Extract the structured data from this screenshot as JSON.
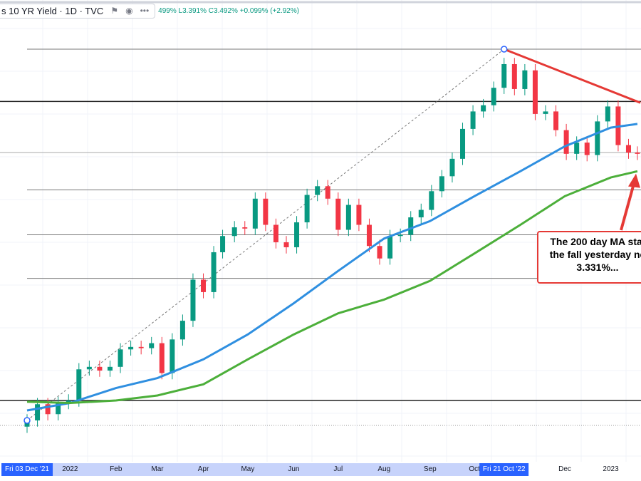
{
  "header": {
    "symbol": "s 10 YR Yield · 1D · TVC",
    "ohlc": "499% L3.391% C3.492% +0.099% (+2.92%)",
    "icons": [
      "flag-icon",
      "eye-icon",
      "more-icon"
    ]
  },
  "annotation": {
    "lines": [
      "The 200 day MA stal",
      "the fall yesterday ne",
      "3.331%..."
    ]
  },
  "x_axis": {
    "labels": [
      {
        "text": "2022",
        "date": "2022-01-01"
      },
      {
        "text": "Feb",
        "date": "2022-02-01"
      },
      {
        "text": "Mar",
        "date": "2022-03-01"
      },
      {
        "text": "Apr",
        "date": "2022-04-01"
      },
      {
        "text": "May",
        "date": "2022-05-01"
      },
      {
        "text": "Jun",
        "date": "2022-06-01"
      },
      {
        "text": "Jul",
        "date": "2022-07-01"
      },
      {
        "text": "Aug",
        "date": "2022-08-01"
      },
      {
        "text": "Sep",
        "date": "2022-09-01"
      },
      {
        "text": "Oct",
        "date": "2022-10-01"
      },
      {
        "text": "Dec",
        "date": "2022-12-01"
      },
      {
        "text": "2023",
        "date": "2023-01-01"
      }
    ],
    "highlighted": [
      {
        "text": "Fri 03 Dec '21",
        "date": "2021-12-03"
      },
      {
        "text": "Fri 21 Oct '22",
        "date": "2022-10-21"
      }
    ]
  },
  "chart_data": {
    "type": "candlestick",
    "title": "10 YR Yield",
    "interval": "1D",
    "unit": "%",
    "colors": {
      "up": "#089981",
      "down": "#f23645",
      "ma100": "#2f8fe0",
      "ma200": "#4caf3a",
      "trendline": "#e53935"
    },
    "weekly_closes": {
      "dates": [
        "2021-12-03",
        "2021-12-10",
        "2021-12-17",
        "2021-12-24",
        "2021-12-31",
        "2022-01-07",
        "2022-01-14",
        "2022-01-21",
        "2022-01-28",
        "2022-02-04",
        "2022-02-11",
        "2022-02-18",
        "2022-02-25",
        "2022-03-04",
        "2022-03-11",
        "2022-03-18",
        "2022-03-25",
        "2022-04-01",
        "2022-04-08",
        "2022-04-14",
        "2022-04-22",
        "2022-04-29",
        "2022-05-06",
        "2022-05-13",
        "2022-05-20",
        "2022-05-27",
        "2022-06-03",
        "2022-06-10",
        "2022-06-17",
        "2022-06-24",
        "2022-07-01",
        "2022-07-08",
        "2022-07-15",
        "2022-07-22",
        "2022-07-29",
        "2022-08-05",
        "2022-08-12",
        "2022-08-19",
        "2022-08-26",
        "2022-09-02",
        "2022-09-09",
        "2022-09-16",
        "2022-09-23",
        "2022-09-30",
        "2022-10-07",
        "2022-10-14",
        "2022-10-21",
        "2022-10-28",
        "2022-11-04",
        "2022-11-11",
        "2022-11-18",
        "2022-11-25",
        "2022-12-02",
        "2022-12-09",
        "2022-12-16",
        "2022-12-23",
        "2022-12-30",
        "2023-01-06",
        "2023-01-13",
        "2023-01-19"
      ],
      "close": [
        1.35,
        1.48,
        1.4,
        1.49,
        1.51,
        1.76,
        1.78,
        1.75,
        1.78,
        1.92,
        1.94,
        1.93,
        1.97,
        1.73,
        2.0,
        2.15,
        2.48,
        2.38,
        2.7,
        2.83,
        2.9,
        2.89,
        3.13,
        2.92,
        2.78,
        2.74,
        2.94,
        3.16,
        3.23,
        3.13,
        2.88,
        3.08,
        2.92,
        2.75,
        2.65,
        2.83,
        2.84,
        2.98,
        3.04,
        3.19,
        3.31,
        3.45,
        3.69,
        3.83,
        3.88,
        4.02,
        4.21,
        4.01,
        4.16,
        3.81,
        3.83,
        3.68,
        3.49,
        3.58,
        3.48,
        3.75,
        3.87,
        3.56,
        3.5,
        3.49
      ]
    },
    "moving_averages": {
      "dates": [
        "2021-12-03",
        "2022-01-01",
        "2022-02-01",
        "2022-03-01",
        "2022-04-01",
        "2022-05-01",
        "2022-06-01",
        "2022-07-01",
        "2022-08-01",
        "2022-09-01",
        "2022-10-01",
        "2022-11-01",
        "2022-12-01",
        "2023-01-01",
        "2023-01-19"
      ],
      "ma100": [
        1.43,
        1.49,
        1.61,
        1.69,
        1.84,
        2.04,
        2.29,
        2.55,
        2.81,
        2.95,
        3.15,
        3.35,
        3.55,
        3.7,
        3.73
      ],
      "ma200": [
        1.5,
        1.49,
        1.51,
        1.55,
        1.64,
        1.84,
        2.04,
        2.21,
        2.32,
        2.47,
        2.69,
        2.92,
        3.15,
        3.3,
        3.35
      ]
    },
    "horizontal_levels": [
      {
        "value": 4.33,
        "style": "solid"
      },
      {
        "value": 3.91,
        "style": "solid-dark"
      },
      {
        "value": 3.5,
        "style": "thin"
      },
      {
        "value": 3.2,
        "style": "solid"
      },
      {
        "value": 2.84,
        "style": "solid"
      },
      {
        "value": 2.49,
        "style": "solid"
      },
      {
        "value": 1.51,
        "style": "solid-dark"
      },
      {
        "value": 1.31,
        "style": "dotted"
      }
    ],
    "fib_anchor": {
      "low": {
        "date": "2021-12-03",
        "value": 1.35
      },
      "high": {
        "date": "2022-10-21",
        "value": 4.33
      }
    },
    "trendline": {
      "from": {
        "date": "2022-10-21",
        "value": 4.33
      },
      "to": {
        "date": "2023-01-21",
        "value": 3.9
      }
    },
    "ma200_touch": 3.331
  }
}
